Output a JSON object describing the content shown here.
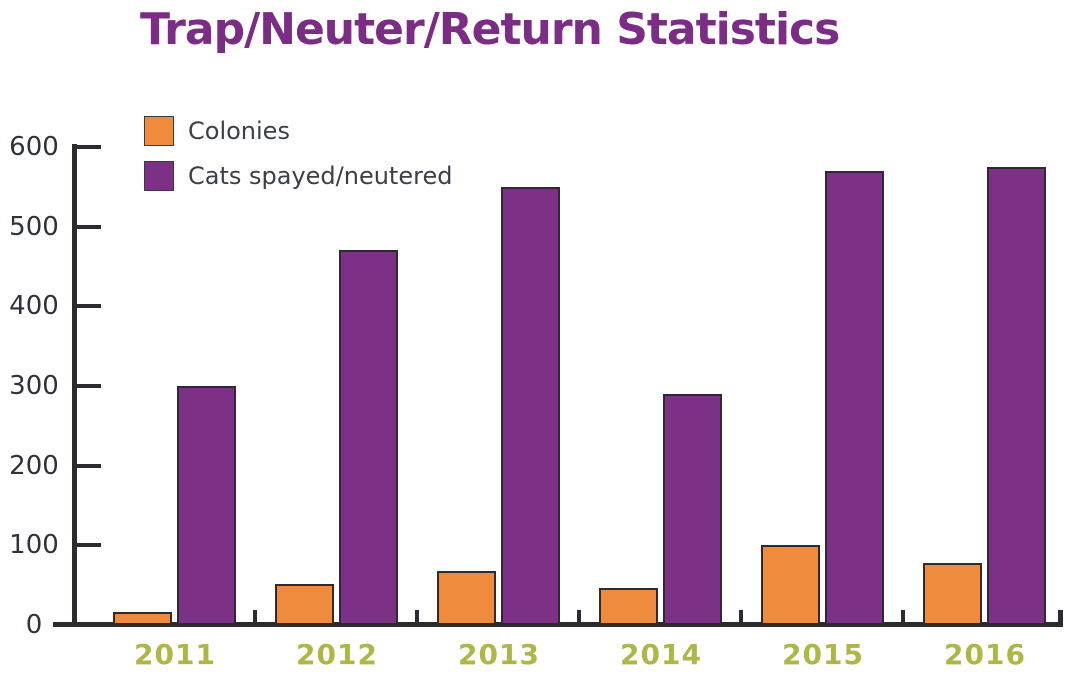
{
  "title": {
    "text": "Trap/Neuter/Return Statistics",
    "color": "#7b2c85"
  },
  "legend": {
    "items": [
      {
        "label": "Colonies",
        "color": "#f08a3d"
      },
      {
        "label": "Cats spayed/neutered",
        "color": "#7c3187"
      }
    ]
  },
  "chart_data": {
    "type": "bar",
    "title": "Trap/Neuter/Return Statistics",
    "categories": [
      "2011",
      "2012",
      "2013",
      "2014",
      "2015",
      "2016"
    ],
    "series": [
      {
        "name": "Colonies",
        "color": "#f08a3d",
        "values": [
          16,
          52,
          68,
          46,
          100,
          78
        ]
      },
      {
        "name": "Cats spayed/neutered",
        "color": "#7c3187",
        "values": [
          300,
          470,
          550,
          290,
          570,
          575
        ]
      }
    ],
    "xlabel": "",
    "ylabel": "",
    "ylim": [
      0,
      600
    ],
    "yticks": [
      0,
      100,
      200,
      300,
      400,
      500,
      600
    ],
    "grid": false,
    "legend_position": "top-left"
  },
  "colors": {
    "background": "#ffffff",
    "axis": "#2b2b31",
    "tick_label": "#2e323c",
    "year_label": "#aeb646",
    "legend_text": "#3b4048",
    "bar_outline": "#2b2b31"
  }
}
